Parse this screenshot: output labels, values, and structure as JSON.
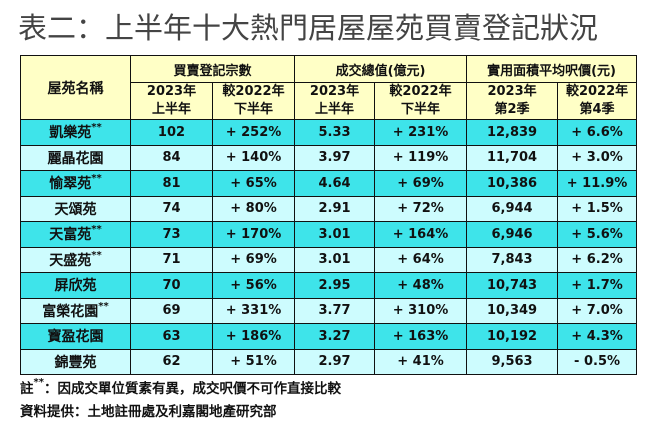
{
  "title": "表二：上半年十大熱門居屋屋苑買賣登記狀況",
  "headers": {
    "estate": "屋苑名稱",
    "groups": [
      "買賣登記宗數",
      "成交總值(億元)",
      "實用面積平均呎價(元)"
    ],
    "sub": [
      [
        "2023年",
        "上半年"
      ],
      [
        "較2022年",
        "下半年"
      ],
      [
        "2023年",
        "上半年"
      ],
      [
        "較2022年",
        "下半年"
      ],
      [
        "2023年",
        "第2季"
      ],
      [
        "較2022年",
        "第4季"
      ]
    ]
  },
  "rows": [
    {
      "name": "凱樂苑",
      "mark": "**",
      "cells": [
        "102",
        "+ 252%",
        "5.33",
        "+ 231%",
        "12,839",
        "+ 6.6%"
      ]
    },
    {
      "name": "麗晶花園",
      "mark": "",
      "cells": [
        "84",
        "+ 140%",
        "3.97",
        "+ 119%",
        "11,704",
        "+ 3.0%"
      ]
    },
    {
      "name": "愉翠苑",
      "mark": "**",
      "cells": [
        "81",
        "+ 65%",
        "4.64",
        "+ 69%",
        "10,386",
        "+ 11.9%"
      ]
    },
    {
      "name": "天頌苑",
      "mark": "",
      "cells": [
        "74",
        "+ 80%",
        "2.91",
        "+ 72%",
        "6,944",
        "+ 1.5%"
      ]
    },
    {
      "name": "天富苑",
      "mark": "**",
      "cells": [
        "73",
        "+ 170%",
        "3.01",
        "+ 164%",
        "6,946",
        "+ 5.6%"
      ]
    },
    {
      "name": "天盛苑",
      "mark": "**",
      "cells": [
        "71",
        "+ 69%",
        "3.01",
        "+ 64%",
        "7,843",
        "+ 6.2%"
      ]
    },
    {
      "name": "屏欣苑",
      "mark": "",
      "cells": [
        "70",
        "+ 56%",
        "2.95",
        "+ 48%",
        "10,743",
        "+ 1.7%"
      ]
    },
    {
      "name": "富榮花園",
      "mark": "**",
      "cells": [
        "69",
        "+ 331%",
        "3.77",
        "+ 310%",
        "10,349",
        "+ 7.0%"
      ]
    },
    {
      "name": "寶盈花園",
      "mark": "",
      "cells": [
        "63",
        "+ 186%",
        "3.27",
        "+ 163%",
        "10,192",
        "+ 4.3%"
      ]
    },
    {
      "name": "錦豐苑",
      "mark": "",
      "cells": [
        "62",
        "+ 51%",
        "2.97",
        "+ 41%",
        "9,563",
        "- 0.5%"
      ]
    }
  ],
  "notes": {
    "note_prefix": "註",
    "note_mark": "**",
    "note_text": "：因成交單位質素有異，成交呎價不可作直接比較",
    "source": "資料提供：土地註冊處及利嘉閣地產研究部"
  },
  "colors": {
    "header": "#ffffc6",
    "row_odd": "#3ee4ea",
    "row_even": "#cdfcfe"
  }
}
